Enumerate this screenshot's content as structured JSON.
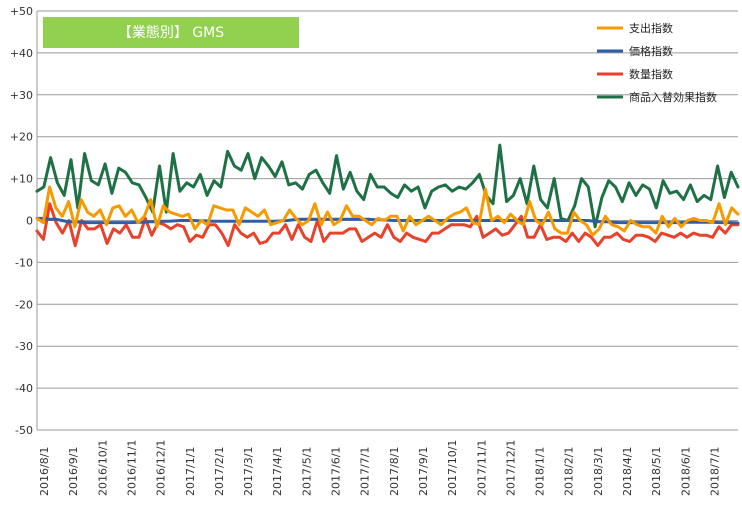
{
  "chart_data": {
    "type": "line",
    "title": "【業態別】 GMS",
    "title_bg": "#92D050",
    "ylim": [
      -50,
      50
    ],
    "yticks": [
      "+50",
      "+40",
      "+30",
      "+20",
      "+10",
      "0",
      "-10",
      "-20",
      "-30",
      "-40",
      "-50"
    ],
    "ytick_values": [
      50,
      40,
      30,
      20,
      10,
      0,
      -10,
      -20,
      -30,
      -40,
      -50
    ],
    "grid": true,
    "legend_position": "top-right",
    "x_month_labels": [
      "2016/8/1",
      "2016/9/1",
      "2016/10/1",
      "2016/11/1",
      "2016/12/1",
      "2017/1/1",
      "2017/2/1",
      "2017/3/1",
      "2017/4/1",
      "2017/5/1",
      "2017/6/1",
      "2017/7/1",
      "2017/8/1",
      "2017/9/1",
      "2017/10/1",
      "2017/11/1",
      "2017/12/1",
      "2018/1/1",
      "2018/2/1",
      "2018/3/1",
      "2018/4/1",
      "2018/5/1",
      "2018/6/1",
      "2018/7/1"
    ],
    "series": [
      {
        "name": "支出指数",
        "color": "#F79A00",
        "values": [
          0.5,
          -0.5,
          8,
          3,
          1,
          4.5,
          -1.5,
          5,
          2,
          1,
          2.5,
          -1,
          3,
          3.5,
          1,
          2.5,
          -0.5,
          1,
          5,
          -1.5,
          3.5,
          2,
          1.5,
          1,
          1.5,
          -2,
          0,
          -1,
          3.5,
          3,
          2.5,
          2.5,
          -1,
          3,
          2,
          1,
          2.5,
          -1,
          -0.5,
          0,
          2.5,
          0.5,
          -1,
          0,
          4,
          -1,
          2,
          -1,
          0,
          3.5,
          1,
          1,
          0,
          -1,
          0.5,
          0,
          1,
          1,
          -2.5,
          1,
          -1,
          0,
          1,
          0,
          -1,
          0.5,
          1.5,
          2,
          3,
          -0.5,
          -1,
          7.5,
          0,
          1,
          -0.5,
          1.5,
          0,
          -1,
          4.5,
          0,
          -1,
          2,
          -2,
          -3,
          -3,
          2,
          0,
          -1,
          -3.5,
          -2,
          1,
          -1,
          -1.5,
          -2.5,
          0,
          -1,
          -1.5,
          -1.5,
          -3,
          1,
          -1.5,
          0.5,
          -1.5,
          0,
          0.5,
          0,
          0,
          -0.5,
          4,
          -1,
          3,
          1.5
        ]
      },
      {
        "name": "価格指数",
        "color": "#2E5EA8",
        "values": [
          0.5,
          0.5,
          0.3,
          0.3,
          0,
          -0.3,
          -0.3,
          -0.4,
          -0.5,
          -0.5,
          -0.5,
          -0.5,
          -0.5,
          -0.5,
          -0.5,
          -0.5,
          -0.4,
          -0.4,
          -0.3,
          -0.3,
          -0.2,
          -0.2,
          -0.1,
          0,
          0,
          0,
          -0.1,
          -0.1,
          -0.2,
          -0.2,
          -0.2,
          -0.2,
          -0.2,
          -0.2,
          -0.2,
          -0.2,
          -0.2,
          -0.2,
          -0.2,
          -0.1,
          0,
          0.2,
          0.3,
          0.3,
          0.3,
          0.3,
          0.3,
          0.3,
          0.3,
          0.3,
          0.3,
          0.3,
          0.3,
          0.3,
          0.2,
          0.2,
          0.1,
          0,
          0,
          0,
          0,
          0,
          0,
          0,
          0,
          0,
          0,
          0,
          0,
          0,
          0,
          0,
          0,
          0,
          0,
          0,
          0,
          0,
          0,
          0,
          0,
          0,
          0,
          0,
          0,
          0,
          0,
          0,
          0,
          -0.2,
          -0.3,
          -0.3,
          -0.4,
          -0.5,
          -0.5,
          -0.5,
          -0.5,
          -0.5,
          -0.5,
          -0.5,
          -0.5,
          -0.5,
          -0.5,
          -0.5,
          -0.4,
          -0.4,
          -0.4,
          -0.4,
          -0.4,
          -0.5,
          -0.5,
          -0.5,
          -0.6
        ]
      },
      {
        "name": "数量指数",
        "color": "#E8412C",
        "values": [
          -2.5,
          -4.5,
          4,
          -0.5,
          -3,
          0,
          -6,
          0,
          -2,
          -2,
          -1,
          -5.5,
          -2,
          -3,
          -1,
          -4,
          -4,
          0.5,
          -3.5,
          -0.5,
          -1,
          -2,
          -1,
          -1.5,
          -5,
          -3.5,
          -4,
          -1,
          -1,
          -3,
          -6,
          -1,
          -3,
          -4,
          -3,
          -5.5,
          -5,
          -3,
          -3,
          -1,
          -4.5,
          -1,
          -4,
          -5,
          0,
          -5,
          -3,
          -3,
          -3,
          -2,
          -2,
          -5,
          -4,
          -3,
          -4,
          -1,
          -4,
          -5,
          -3,
          -4,
          -4.5,
          -5,
          -3,
          -3,
          -2,
          -1,
          -1,
          -1,
          -1.5,
          1,
          -4,
          -3,
          -2,
          -3.5,
          -3,
          -1,
          1,
          -4,
          -4,
          -1,
          -4.5,
          -4,
          -4,
          -5,
          -3,
          -5,
          -3,
          -4,
          -6,
          -4,
          -4,
          -3,
          -4.5,
          -5,
          -3.5,
          -3.5,
          -4,
          -5,
          -3,
          -3.5,
          -4,
          -3,
          -4,
          -3,
          -3.5,
          -3.5,
          -4,
          -1.5,
          -3,
          -1,
          -1
        ]
      },
      {
        "name": "商品入替効果指数",
        "color": "#1E7145",
        "values": [
          7,
          8,
          15,
          9,
          6,
          14.5,
          3,
          16,
          9.5,
          8.5,
          13.5,
          6.5,
          12.5,
          11.5,
          9,
          8.5,
          5.5,
          2,
          13,
          2,
          16,
          7,
          9,
          8,
          11,
          6,
          9.5,
          8,
          16.5,
          13,
          12,
          16,
          10,
          15,
          13,
          10.5,
          14,
          8.5,
          9,
          7.5,
          11,
          12,
          9,
          6.5,
          15.5,
          7.5,
          11.5,
          7,
          5,
          11,
          8,
          8,
          6.5,
          5.5,
          8.5,
          7,
          8,
          3,
          7,
          8,
          8.5,
          7,
          8,
          7.5,
          9,
          11,
          6,
          4,
          18,
          4.5,
          6,
          10,
          4,
          13,
          5,
          3,
          10,
          0.5,
          0,
          3.5,
          10,
          8,
          -1.5,
          5.5,
          9.5,
          8,
          4.5,
          9,
          6,
          8.5,
          7.5,
          3,
          9.5,
          6.5,
          7,
          5,
          8.5,
          4.5,
          6,
          5,
          13,
          5.5,
          11.5,
          8
        ]
      }
    ]
  }
}
